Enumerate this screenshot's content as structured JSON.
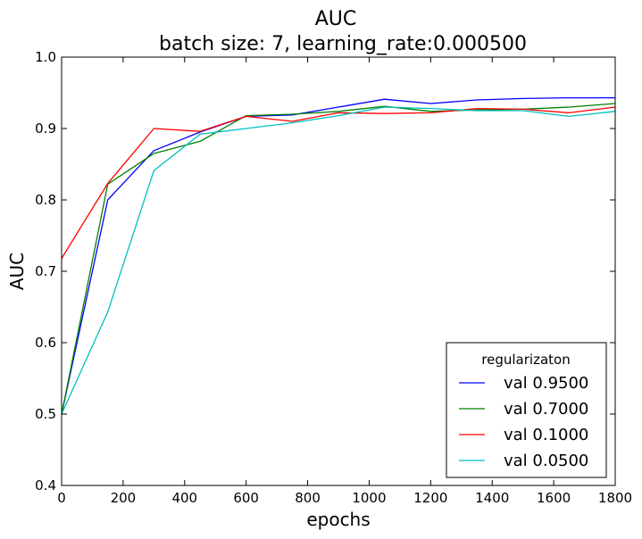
{
  "chart_data": {
    "type": "line",
    "title": "AUC",
    "subtitle": "batch size: 7, learning_rate:0.000500",
    "xlabel": "epochs",
    "ylabel": "AUC",
    "xlim": [
      0,
      1800
    ],
    "ylim": [
      0.4,
      1.0
    ],
    "xticks": [
      "0",
      "200",
      "400",
      "600",
      "800",
      "1000",
      "1200",
      "1400",
      "1600",
      "1800"
    ],
    "yticks": [
      "0.4",
      "0.5",
      "0.6",
      "0.7",
      "0.8",
      "0.9",
      "1.0"
    ],
    "x": [
      0,
      150,
      300,
      450,
      600,
      750,
      900,
      1050,
      1200,
      1350,
      1500,
      1650,
      1800
    ],
    "grid": false,
    "legend": {
      "title": "regularizaton",
      "placement": "lower-right"
    },
    "series": [
      {
        "name": "val 0.9500",
        "color": "#0000ff",
        "values": [
          0.5,
          0.8,
          0.869,
          0.895,
          0.917,
          0.919,
          0.93,
          0.941,
          0.935,
          0.94,
          0.942,
          0.943,
          0.943
        ]
      },
      {
        "name": "val 0.7000",
        "color": "#008000",
        "values": [
          0.5,
          0.822,
          0.865,
          0.882,
          0.918,
          0.92,
          0.924,
          0.931,
          0.924,
          0.926,
          0.927,
          0.93,
          0.935
        ]
      },
      {
        "name": "val 0.1000",
        "color": "#ff0000",
        "values": [
          0.718,
          0.823,
          0.9,
          0.896,
          0.917,
          0.91,
          0.922,
          0.921,
          0.922,
          0.928,
          0.927,
          0.922,
          0.93
        ]
      },
      {
        "name": "val 0.0500",
        "color": "#00bfbf",
        "values": [
          0.5,
          0.643,
          0.841,
          0.892,
          0.9,
          0.908,
          0.918,
          0.93,
          0.928,
          0.925,
          0.925,
          0.917,
          0.924
        ]
      }
    ]
  }
}
